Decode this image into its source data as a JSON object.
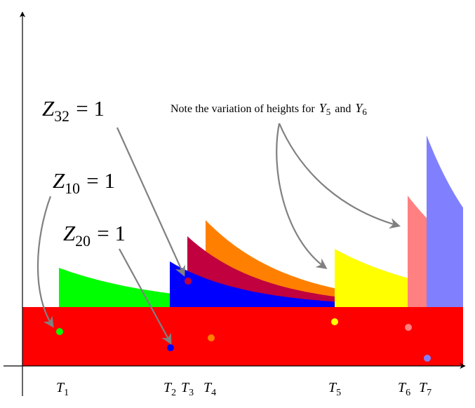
{
  "annotations": [
    {
      "var": "Z",
      "sub": "32",
      "rest": "= 1"
    },
    {
      "var": "Z",
      "sub": "10",
      "rest": "= 1"
    },
    {
      "var": "Z",
      "sub": "20",
      "rest": "= 1"
    }
  ],
  "note": {
    "text": "Note the variation of heights for",
    "var1": "Y",
    "sub1": "5",
    "and": "and",
    "var2": "Y",
    "sub2": "6"
  },
  "times": [
    {
      "var": "T",
      "sub": "1"
    },
    {
      "var": "T",
      "sub": "2"
    },
    {
      "var": "T",
      "sub": "3"
    },
    {
      "var": "T",
      "sub": "4"
    },
    {
      "var": "T",
      "sub": "5"
    },
    {
      "var": "T",
      "sub": "6"
    },
    {
      "var": "T",
      "sub": "7"
    }
  ]
}
